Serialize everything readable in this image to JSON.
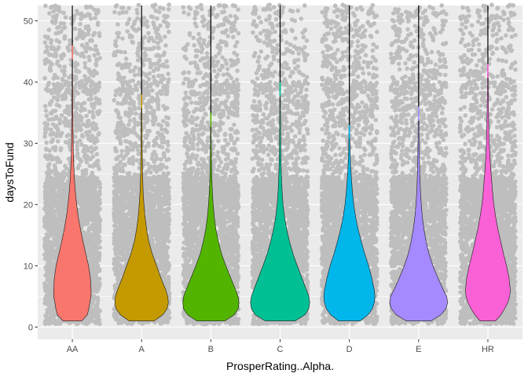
{
  "chart_data": {
    "type": "violin",
    "xlabel": "ProsperRating..Alpha.",
    "ylabel": "daysToFund",
    "categories": [
      "AA",
      "A",
      "B",
      "C",
      "D",
      "E",
      "HR"
    ],
    "ylim": [
      -2,
      52.5
    ],
    "yticks": [
      0,
      10,
      20,
      30,
      40,
      50
    ],
    "y_tick_labels": [
      "0",
      "10",
      "20",
      "30",
      "40",
      "50"
    ],
    "grid": true,
    "legend": "none",
    "background_color": "#ebebeb",
    "grid_color": "#ffffff",
    "jitter_point_color": "#bebebe",
    "series": [
      {
        "category": "AA",
        "color": "#F8766D",
        "min": 1,
        "max": 46,
        "profile": [
          [
            1,
            0.3
          ],
          [
            2,
            0.48
          ],
          [
            3,
            0.53
          ],
          [
            4,
            0.56
          ],
          [
            5,
            0.6
          ],
          [
            6,
            0.6
          ],
          [
            8,
            0.58
          ],
          [
            10,
            0.52
          ],
          [
            12,
            0.43
          ],
          [
            14,
            0.34
          ],
          [
            16,
            0.26
          ],
          [
            18,
            0.19
          ],
          [
            20,
            0.14
          ],
          [
            22,
            0.1
          ],
          [
            24,
            0.07
          ],
          [
            26,
            0.05
          ],
          [
            28,
            0.035
          ],
          [
            30,
            0.025
          ],
          [
            35,
            0.015
          ],
          [
            40,
            0.01
          ],
          [
            46,
            0.006
          ]
        ]
      },
      {
        "category": "A",
        "color": "#C49A00",
        "min": 1,
        "max": 38,
        "profile": [
          [
            1,
            0.4
          ],
          [
            2,
            0.68
          ],
          [
            3,
            0.82
          ],
          [
            4,
            0.86
          ],
          [
            5,
            0.84
          ],
          [
            6,
            0.78
          ],
          [
            8,
            0.62
          ],
          [
            10,
            0.48
          ],
          [
            12,
            0.34
          ],
          [
            14,
            0.23
          ],
          [
            16,
            0.16
          ],
          [
            18,
            0.11
          ],
          [
            20,
            0.075
          ],
          [
            22,
            0.05
          ],
          [
            25,
            0.03
          ],
          [
            30,
            0.017
          ],
          [
            34,
            0.012
          ],
          [
            38,
            0.006
          ]
        ]
      },
      {
        "category": "B",
        "color": "#53B400",
        "min": 1,
        "max": 35,
        "profile": [
          [
            1,
            0.45
          ],
          [
            2,
            0.75
          ],
          [
            3,
            0.88
          ],
          [
            4,
            0.9
          ],
          [
            5,
            0.87
          ],
          [
            6,
            0.8
          ],
          [
            8,
            0.64
          ],
          [
            10,
            0.48
          ],
          [
            12,
            0.34
          ],
          [
            14,
            0.24
          ],
          [
            16,
            0.16
          ],
          [
            18,
            0.11
          ],
          [
            20,
            0.075
          ],
          [
            22,
            0.05
          ],
          [
            24,
            0.035
          ],
          [
            26,
            0.025
          ],
          [
            28,
            0.02
          ],
          [
            30,
            0.014
          ],
          [
            35,
            0.006
          ]
        ]
      },
      {
        "category": "C",
        "color": "#00C094",
        "min": 1,
        "max": 40,
        "profile": [
          [
            1,
            0.48
          ],
          [
            2,
            0.8
          ],
          [
            3,
            0.92
          ],
          [
            4,
            0.95
          ],
          [
            5,
            0.92
          ],
          [
            6,
            0.85
          ],
          [
            8,
            0.7
          ],
          [
            10,
            0.55
          ],
          [
            12,
            0.41
          ],
          [
            14,
            0.3
          ],
          [
            16,
            0.21
          ],
          [
            18,
            0.14
          ],
          [
            20,
            0.095
          ],
          [
            22,
            0.065
          ],
          [
            25,
            0.04
          ],
          [
            28,
            0.025
          ],
          [
            32,
            0.015
          ],
          [
            36,
            0.01
          ],
          [
            40,
            0.006
          ]
        ]
      },
      {
        "category": "D",
        "color": "#00B6EB",
        "min": 1,
        "max": 33,
        "profile": [
          [
            1,
            0.35
          ],
          [
            2,
            0.6
          ],
          [
            3,
            0.74
          ],
          [
            4,
            0.8
          ],
          [
            5,
            0.82
          ],
          [
            6,
            0.8
          ],
          [
            8,
            0.72
          ],
          [
            10,
            0.62
          ],
          [
            12,
            0.49
          ],
          [
            14,
            0.38
          ],
          [
            16,
            0.28
          ],
          [
            18,
            0.2
          ],
          [
            20,
            0.14
          ],
          [
            22,
            0.1
          ],
          [
            24,
            0.07
          ],
          [
            26,
            0.045
          ],
          [
            28,
            0.03
          ],
          [
            30,
            0.02
          ],
          [
            33,
            0.008
          ]
        ]
      },
      {
        "category": "E",
        "color": "#A58AFF",
        "min": 1,
        "max": 36,
        "profile": [
          [
            1,
            0.4
          ],
          [
            2,
            0.72
          ],
          [
            3,
            0.88
          ],
          [
            4,
            0.93
          ],
          [
            5,
            0.9
          ],
          [
            6,
            0.8
          ],
          [
            8,
            0.62
          ],
          [
            10,
            0.46
          ],
          [
            12,
            0.33
          ],
          [
            14,
            0.24
          ],
          [
            16,
            0.17
          ],
          [
            18,
            0.12
          ],
          [
            20,
            0.085
          ],
          [
            22,
            0.06
          ],
          [
            25,
            0.038
          ],
          [
            28,
            0.025
          ],
          [
            32,
            0.014
          ],
          [
            36,
            0.006
          ]
        ]
      },
      {
        "category": "HR",
        "color": "#FB61D7",
        "min": 1,
        "max": 43,
        "profile": [
          [
            1,
            0.25
          ],
          [
            2,
            0.42
          ],
          [
            3,
            0.54
          ],
          [
            4,
            0.64
          ],
          [
            5,
            0.7
          ],
          [
            6,
            0.72
          ],
          [
            8,
            0.68
          ],
          [
            10,
            0.6
          ],
          [
            12,
            0.5
          ],
          [
            14,
            0.41
          ],
          [
            16,
            0.32
          ],
          [
            18,
            0.25
          ],
          [
            20,
            0.19
          ],
          [
            22,
            0.15
          ],
          [
            24,
            0.12
          ],
          [
            26,
            0.09
          ],
          [
            28,
            0.065
          ],
          [
            30,
            0.045
          ],
          [
            33,
            0.03
          ],
          [
            36,
            0.02
          ],
          [
            40,
            0.012
          ],
          [
            43,
            0.006
          ]
        ]
      }
    ]
  }
}
